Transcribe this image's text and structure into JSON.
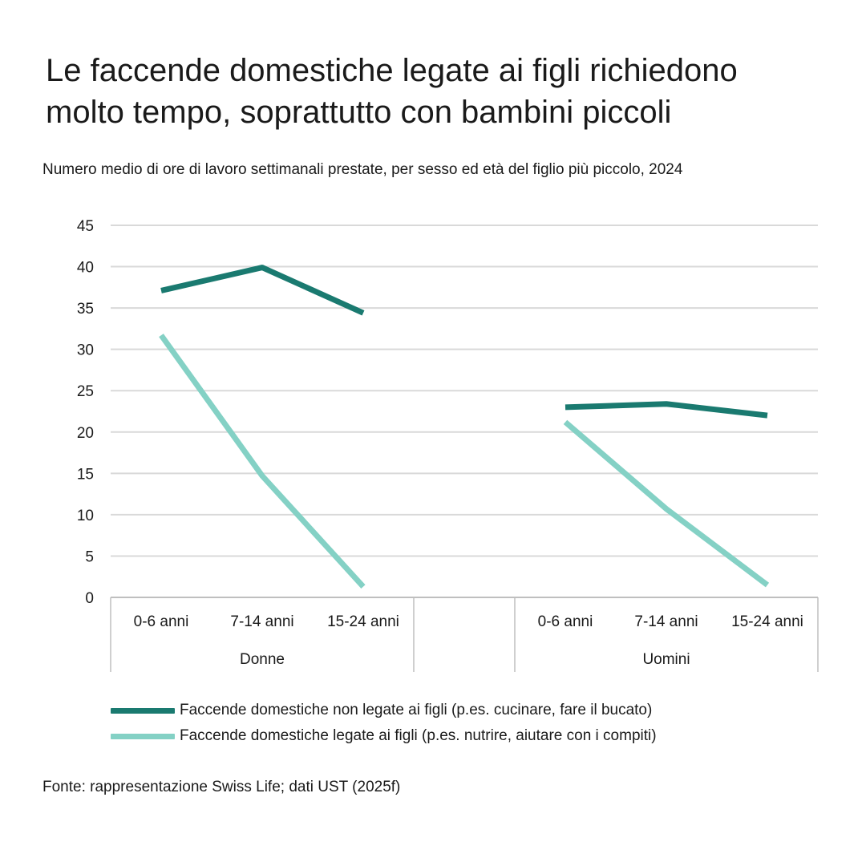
{
  "chart_data": {
    "type": "line",
    "title": "Le faccende domestiche legate ai figli richiedono molto tempo, soprattutto con bambini piccoli",
    "title_lines": [
      "Le faccende domestiche legate ai figli richiedono",
      "molto tempo, soprattutto con bambini piccoli"
    ],
    "subtitle": "Numero medio di ore di lavoro settimanali prestate, per sesso ed età del figlio più piccolo, 2024",
    "ylim": [
      0,
      45
    ],
    "yticks": [
      0,
      5,
      10,
      15,
      20,
      25,
      30,
      35,
      40,
      45
    ],
    "grid": true,
    "groups": [
      {
        "label": "Donne",
        "categories": [
          "0-6 anni",
          "7-14 anni",
          "15-24 anni"
        ]
      },
      {
        "label": "Uomini",
        "categories": [
          "0-6 anni",
          "7-14 anni",
          "15-24 anni"
        ]
      }
    ],
    "series": [
      {
        "name": "Faccende domestiche non legate ai figli (p.es. cucinare, fare il bucato)",
        "color": "#1a7a70",
        "values": [
          [
            37.1,
            39.9,
            34.4
          ],
          [
            23.0,
            23.4,
            22.0
          ]
        ]
      },
      {
        "name": "Faccende domestiche legate ai figli (p.es. nutrire, aiutare con i compiti)",
        "color": "#84d1c5",
        "values": [
          [
            31.7,
            14.7,
            1.3
          ],
          [
            21.2,
            10.7,
            1.5
          ]
        ]
      }
    ],
    "legend_position": "bottom",
    "source": "Fonte: rappresentazione Swiss Life; dati UST (2025f)"
  }
}
